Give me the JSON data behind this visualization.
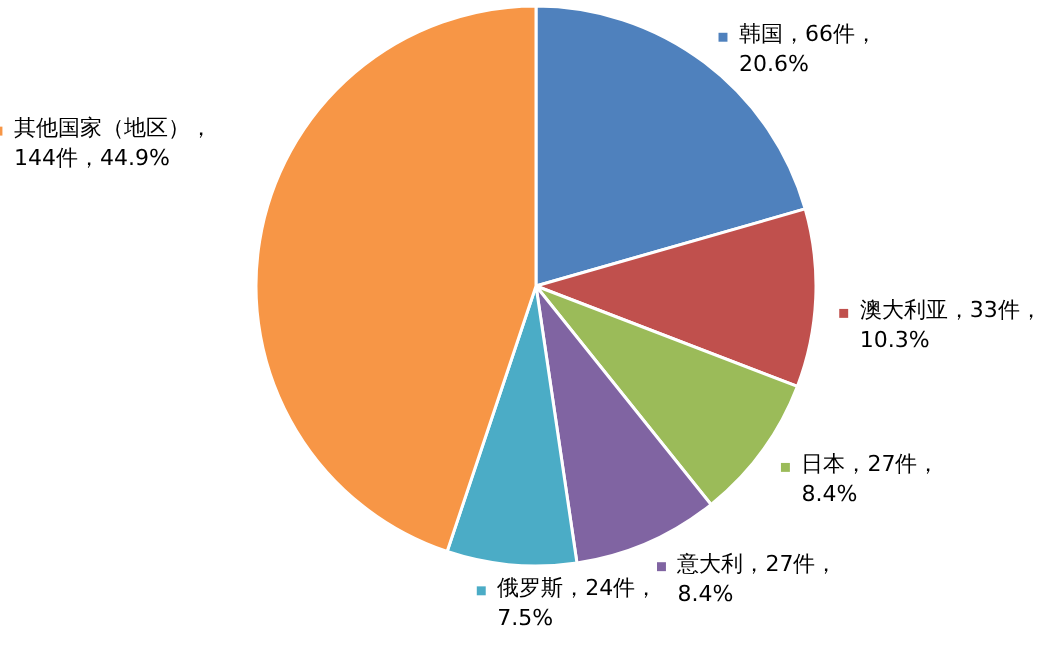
{
  "chart_data": {
    "type": "pie",
    "categories": [
      "韩国",
      "澳大利亚",
      "日本",
      "意大利",
      "俄罗斯",
      "其他国家（地区）"
    ],
    "values": [
      66,
      33,
      27,
      27,
      24,
      144
    ],
    "legend": "bottom left",
    "colors": [
      "#4f81bd",
      "#c0504d",
      "#9bbb59",
      "#8064a2",
      "#4bacc6",
      "#f79646"
    ],
    "value_labels": [
      "，66件，\n20.6%",
      "，33件，\n10.3%",
      "，27件，\n8.4%",
      "，27件，\n8.4%",
      "，24件，\n7.5%",
      "，\n144件，44.9%"
    ]
  }
}
